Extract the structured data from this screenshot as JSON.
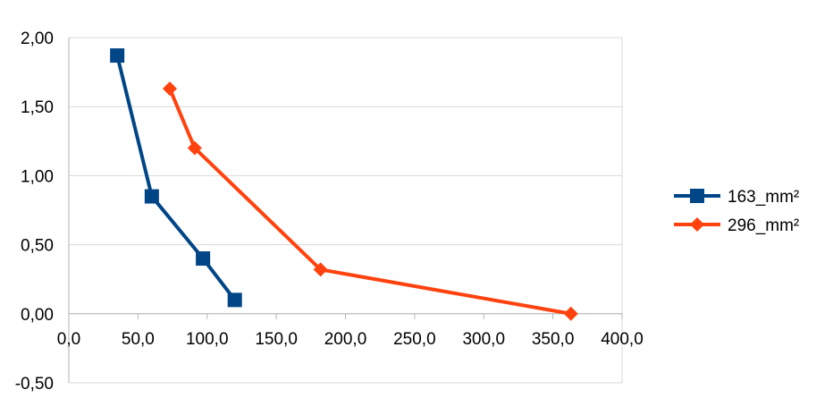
{
  "chart_data": {
    "type": "scatter",
    "title": "",
    "xlabel": "",
    "ylabel": "",
    "xlim": [
      0,
      400
    ],
    "ylim": [
      -0.5,
      2.0
    ],
    "x_ticks": [
      "0,0",
      "50,0",
      "100,0",
      "150,0",
      "200,0",
      "250,0",
      "300,0",
      "350,0",
      "400,0"
    ],
    "y_ticks": [
      "-0,50",
      "0,00",
      "0,50",
      "1,00",
      "1,50",
      "2,00"
    ],
    "grid": "horizontal",
    "legend_position": "right",
    "series": [
      {
        "name": "163_mm²",
        "color": "#004586",
        "marker": "square",
        "points": [
          {
            "x": 35,
            "y": 1.87
          },
          {
            "x": 60,
            "y": 0.85
          },
          {
            "x": 97,
            "y": 0.4
          },
          {
            "x": 120,
            "y": 0.1
          }
        ]
      },
      {
        "name": "296_mm²",
        "color": "#ff420e",
        "marker": "diamond",
        "points": [
          {
            "x": 73,
            "y": 1.63
          },
          {
            "x": 91,
            "y": 1.2
          },
          {
            "x": 182,
            "y": 0.32
          },
          {
            "x": 363,
            "y": 0.0
          }
        ]
      }
    ]
  }
}
